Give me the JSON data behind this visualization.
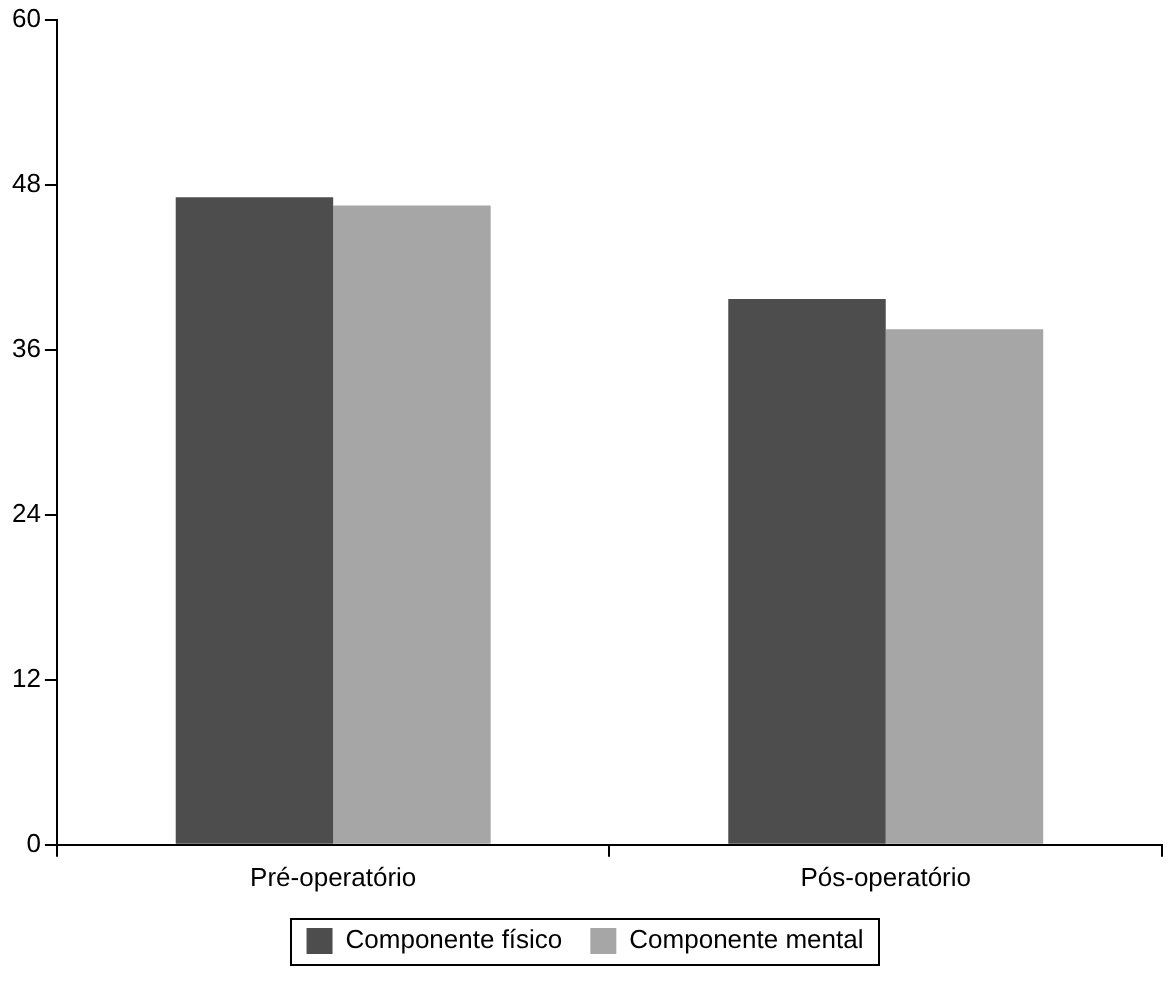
{
  "chart_data": {
    "type": "bar",
    "categories": [
      "Pré-operatório",
      "Pós-operatório"
    ],
    "series": [
      {
        "name": "Componente físico",
        "color": "#4d4d4d",
        "values": [
          47.1,
          39.7
        ]
      },
      {
        "name": "Componente mental",
        "color": "#a6a6a6",
        "values": [
          46.5,
          37.5
        ]
      }
    ],
    "ylim": [
      0,
      60
    ],
    "yticks": [
      0,
      12,
      24,
      36,
      48,
      60
    ],
    "grid": false,
    "legend": "bottom"
  }
}
